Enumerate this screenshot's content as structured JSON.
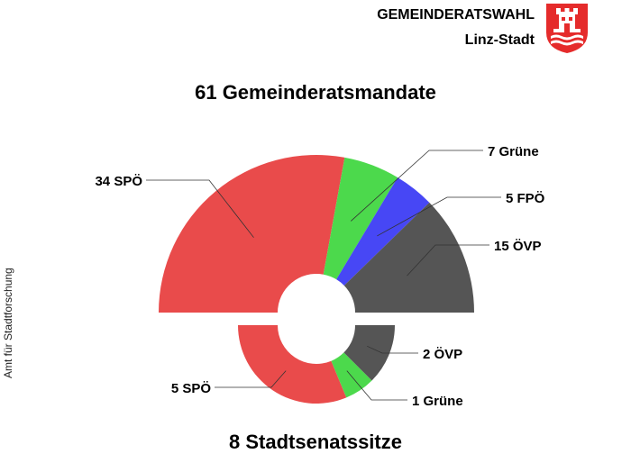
{
  "header": {
    "title": "GEMEINDERATSWAHL",
    "subtitle": "Linz-Stadt",
    "logo_icon": "linz-coat-of-arms-icon"
  },
  "side_label": "Amt für Stadtforschung",
  "chart_data": [
    {
      "type": "pie",
      "subtype": "half-donut (upper)",
      "title": "61 Gemeinderatsmandate",
      "total": 61,
      "categories": [
        "SPÖ",
        "Grüne",
        "FPÖ",
        "ÖVP"
      ],
      "values": [
        34,
        7,
        5,
        15
      ],
      "labels": [
        "34  SPÖ",
        "7  Grüne",
        "5  FPÖ",
        "15  ÖVP"
      ],
      "colors": [
        "#e94b4b",
        "#4cd94c",
        "#4747f5",
        "#555555"
      ]
    },
    {
      "type": "pie",
      "subtype": "half-donut (lower)",
      "title": "8 Stadtsenatssitze",
      "total": 8,
      "categories": [
        "SPÖ",
        "Grüne",
        "ÖVP"
      ],
      "values": [
        5,
        1,
        2
      ],
      "labels": [
        "5  SPÖ",
        "1  Grüne",
        "2  ÖVP"
      ],
      "colors": [
        "#e94b4b",
        "#4cd94c",
        "#555555"
      ]
    }
  ]
}
